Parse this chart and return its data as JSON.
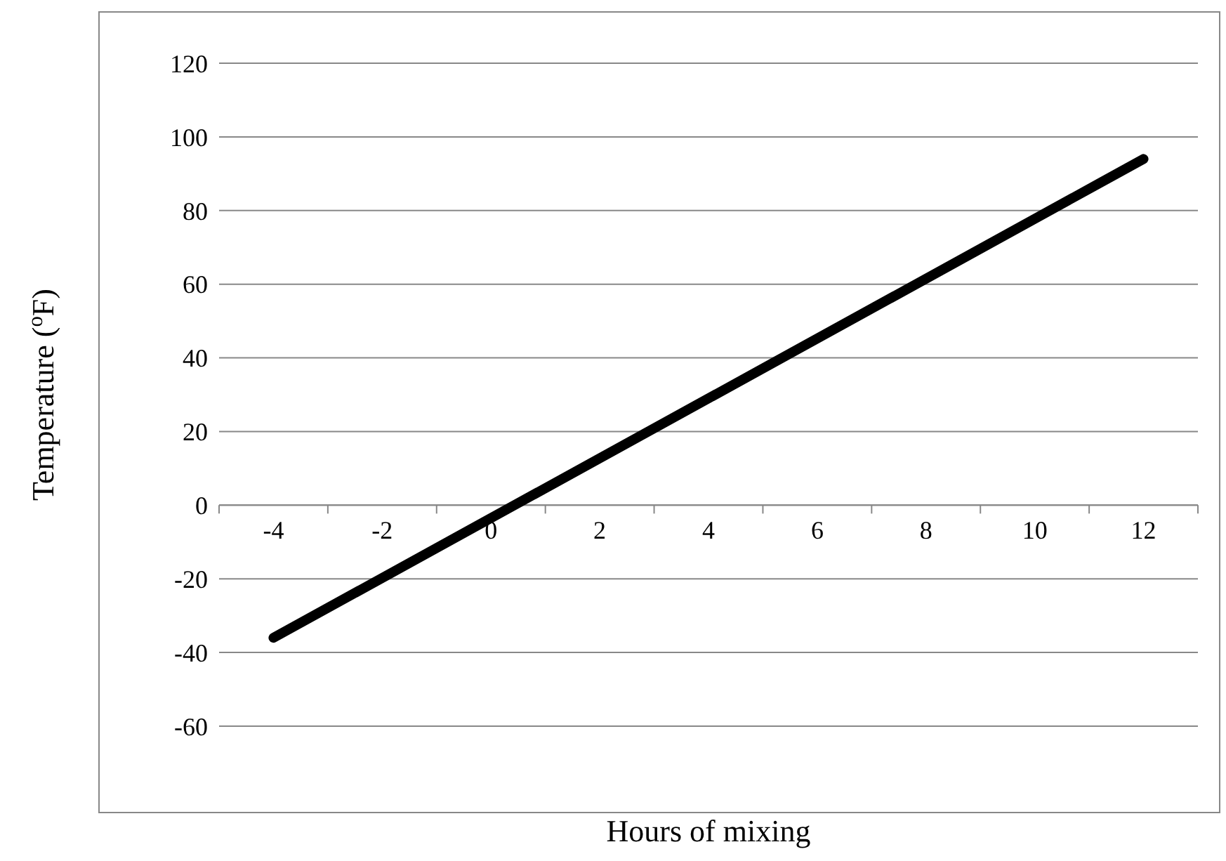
{
  "chart_data": {
    "type": "line",
    "xlabel": "Hours of mixing",
    "ylabel": "Temperature ($^{o}$F)",
    "x": [
      -4,
      12
    ],
    "series": [
      {
        "color": "#000000",
        "values": [
          -36,
          94
        ]
      }
    ],
    "xlim": [
      -5,
      13
    ],
    "xticks": [
      {
        "value": -5,
        "label": null
      },
      -4,
      {
        "value": -3,
        "label": null
      },
      -2,
      {
        "value": -1,
        "label": null
      },
      0,
      {
        "value": 1,
        "label": null
      },
      2,
      {
        "value": 3,
        "label": null
      },
      4,
      {
        "value": 5,
        "label": null
      },
      6,
      {
        "value": 7,
        "label": null
      },
      8,
      {
        "value": 9,
        "label": null
      },
      10,
      {
        "value": 11,
        "label": null
      },
      12,
      {
        "value": 13,
        "label": null
      }
    ],
    "ylim": [
      -60,
      120
    ],
    "yticks": [
      -60,
      -40,
      -20,
      0,
      20,
      40,
      60,
      80,
      100,
      120
    ],
    "grid": "y",
    "marker": "none",
    "line_style": "solid"
  }
}
